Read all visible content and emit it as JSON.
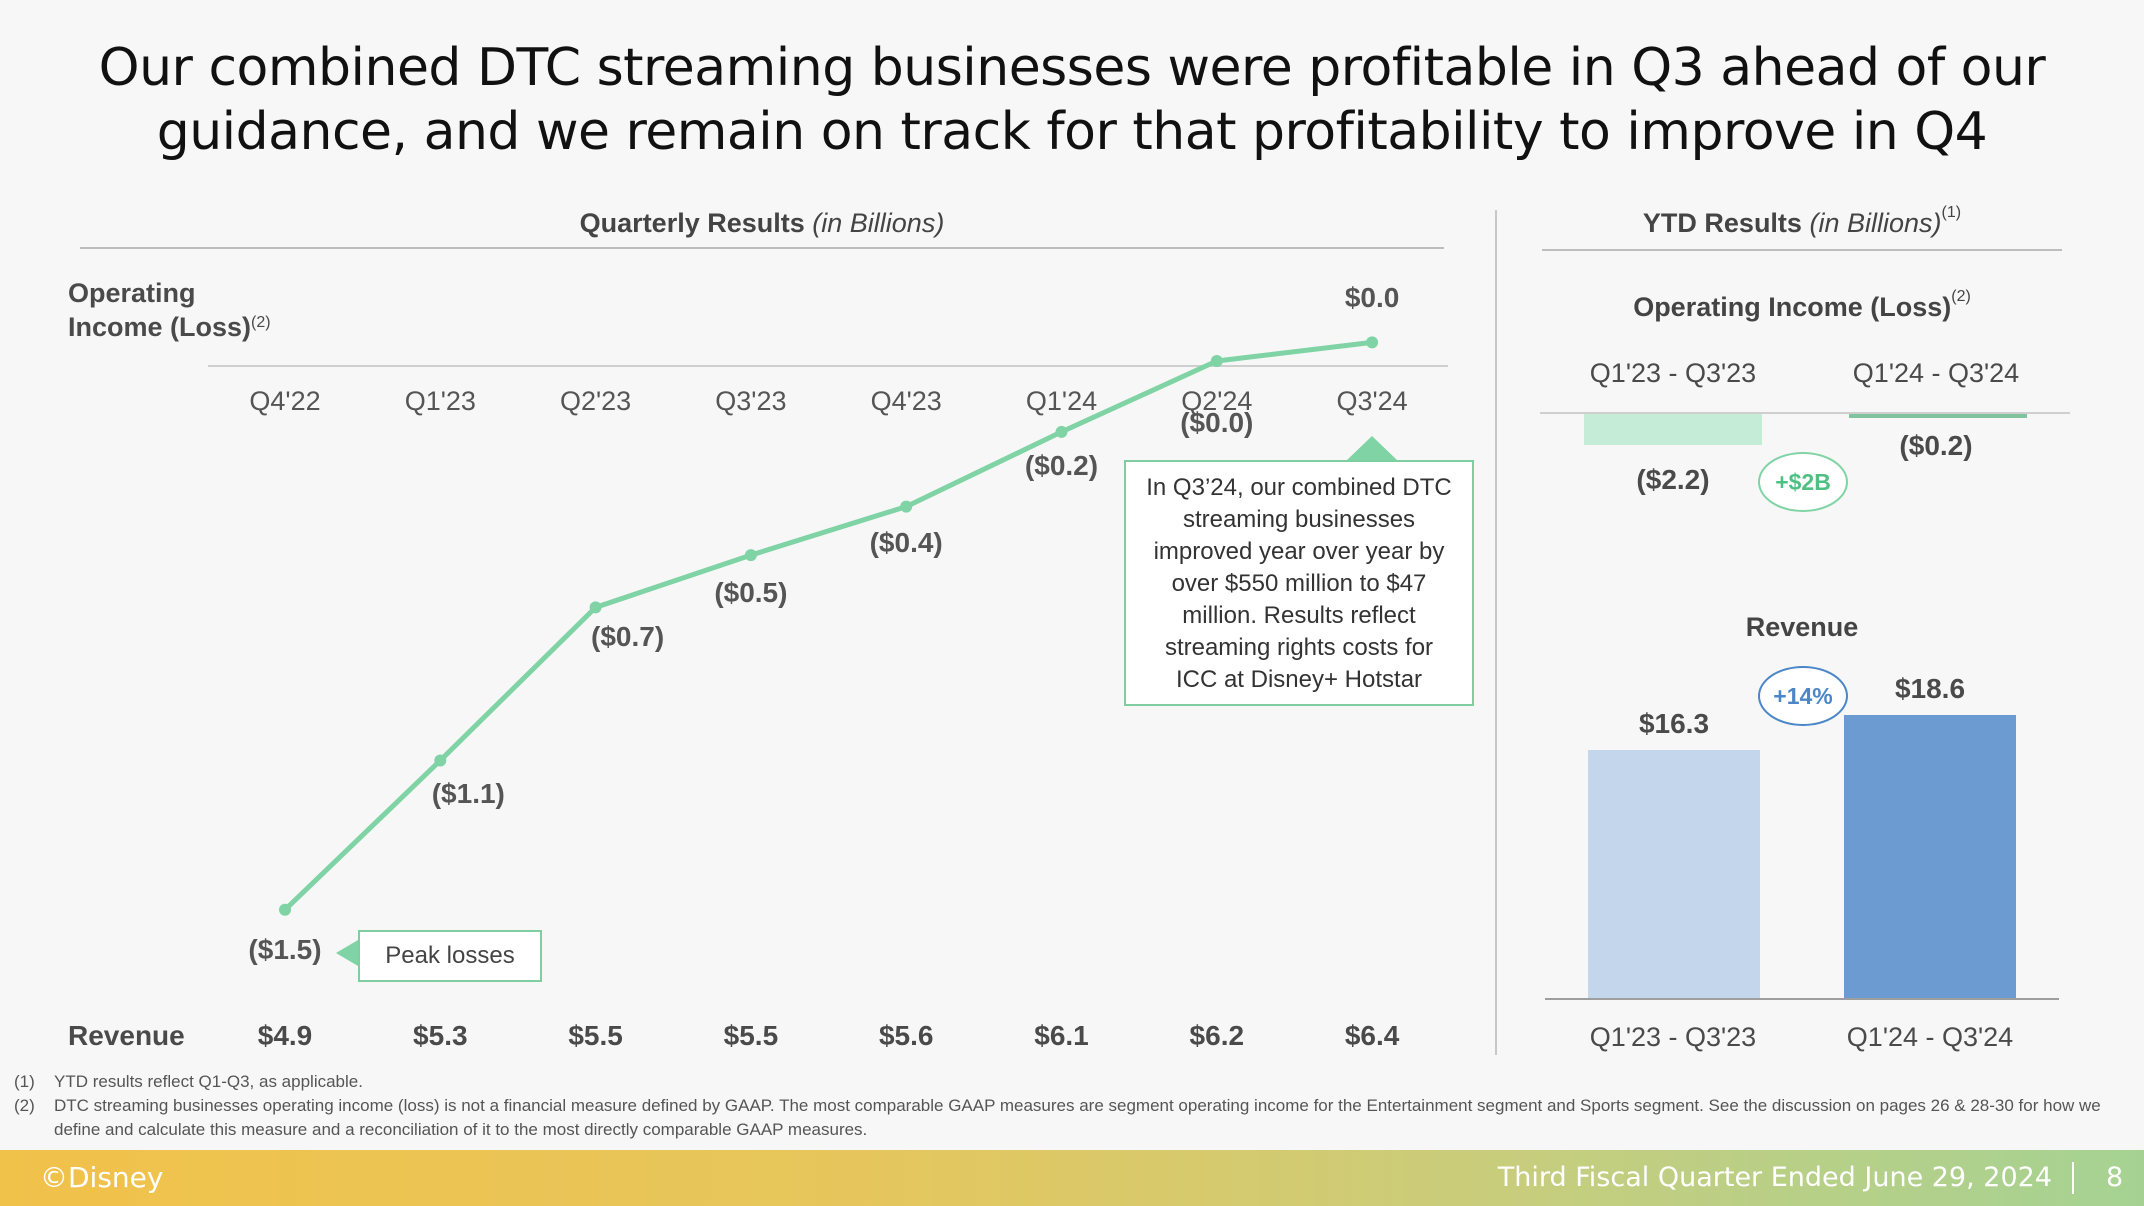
{
  "title_line1": "Our combined DTC streaming businesses were profitable in Q3 ahead of our",
  "title_line2": "guidance, and we remain on track for that profitability to improve in Q4",
  "quarterly": {
    "header_bold": "Quarterly Results",
    "header_italic": "(in Billions)",
    "oi_label_line1": "Operating",
    "oi_label_line2": "Income (Loss)",
    "oi_note": "(2)",
    "revenue_label": "Revenue",
    "peak_note": "Peak losses",
    "callout_lines": [
      "In Q3’24, our combined DTC",
      "streaming businesses",
      "improved year over year by",
      "over $550 million to $47",
      "million. Results reflect",
      "streaming rights costs for",
      "ICC at Disney+ Hotstar"
    ]
  },
  "ytd": {
    "header_bold": "YTD Results",
    "header_italic": "(in Billions)",
    "header_note": "(1)",
    "oi_title": "Operating Income (Loss)",
    "oi_note": "(2)",
    "periods": [
      "Q1'23 - Q3'23",
      "Q1'24 - Q3'24"
    ],
    "oi_labels": [
      "($2.2)",
      "($0.2)"
    ],
    "oi_change": "+$2B",
    "revenue_title": "Revenue",
    "revenue_labels": [
      "$16.3",
      "$18.6"
    ],
    "revenue_change": "+14%"
  },
  "chart_data": [
    {
      "type": "line",
      "title": "Quarterly Results (in Billions)",
      "ylabel": "Operating Income (Loss)",
      "categories": [
        "Q4'22",
        "Q1'23",
        "Q2'23",
        "Q3'23",
        "Q4'23",
        "Q1'24",
        "Q2'24",
        "Q3'24"
      ],
      "series": [
        {
          "name": "Operating Income (Loss)",
          "values": [
            -1.47,
            -1.07,
            -0.66,
            -0.52,
            -0.39,
            -0.19,
            0.0,
            0.05
          ],
          "labels": [
            "($1.5)",
            "($1.1)",
            "($0.7)",
            "($0.5)",
            "($0.4)",
            "($0.2)",
            "($0.0)",
            "$0.0"
          ]
        }
      ],
      "revenue": {
        "values": [
          4.9,
          5.3,
          5.5,
          5.5,
          5.6,
          6.1,
          6.2,
          6.4
        ],
        "labels": [
          "$4.9",
          "$5.3",
          "$5.5",
          "$5.5",
          "$5.6",
          "$6.1",
          "$6.2",
          "$6.4"
        ]
      },
      "line_color": "#7fd3a4"
    },
    {
      "type": "bar",
      "title": "Operating Income (Loss)",
      "categories": [
        "Q1'23 - Q3'23",
        "Q1'24 - Q3'24"
      ],
      "values": [
        -2.2,
        -0.2
      ],
      "colors": [
        "#c5ecd6",
        "#7fc49e"
      ]
    },
    {
      "type": "bar",
      "title": "Revenue",
      "categories": [
        "Q1'23 - Q3'23",
        "Q1'24 - Q3'24"
      ],
      "values": [
        16.3,
        18.6
      ],
      "colors": [
        "#c4d6ec",
        "#6b9bd0"
      ]
    }
  ],
  "colors": {
    "green": "#7fd3a4",
    "blue_light": "#c4d6ec",
    "blue_dark": "#6b9bd0",
    "blue_pill": "#4a86c8",
    "green_pill": "#4fbf82"
  },
  "footnotes": [
    {
      "num": "(1)",
      "text": "YTD results reflect Q1-Q3, as applicable."
    },
    {
      "num": "(2)",
      "text": "DTC streaming businesses operating income (loss) is not a financial measure defined by GAAP. The most comparable GAAP measures are segment operating income for the Entertainment segment and Sports segment. See the discussion on pages 26 & 28-30 for how we define and calculate this measure and a reconciliation of it to the most directly comparable GAAP measures."
    }
  ],
  "footer": {
    "copyright": "©Disney",
    "period": "Third Fiscal Quarter Ended June 29, 2024",
    "page": "8"
  }
}
